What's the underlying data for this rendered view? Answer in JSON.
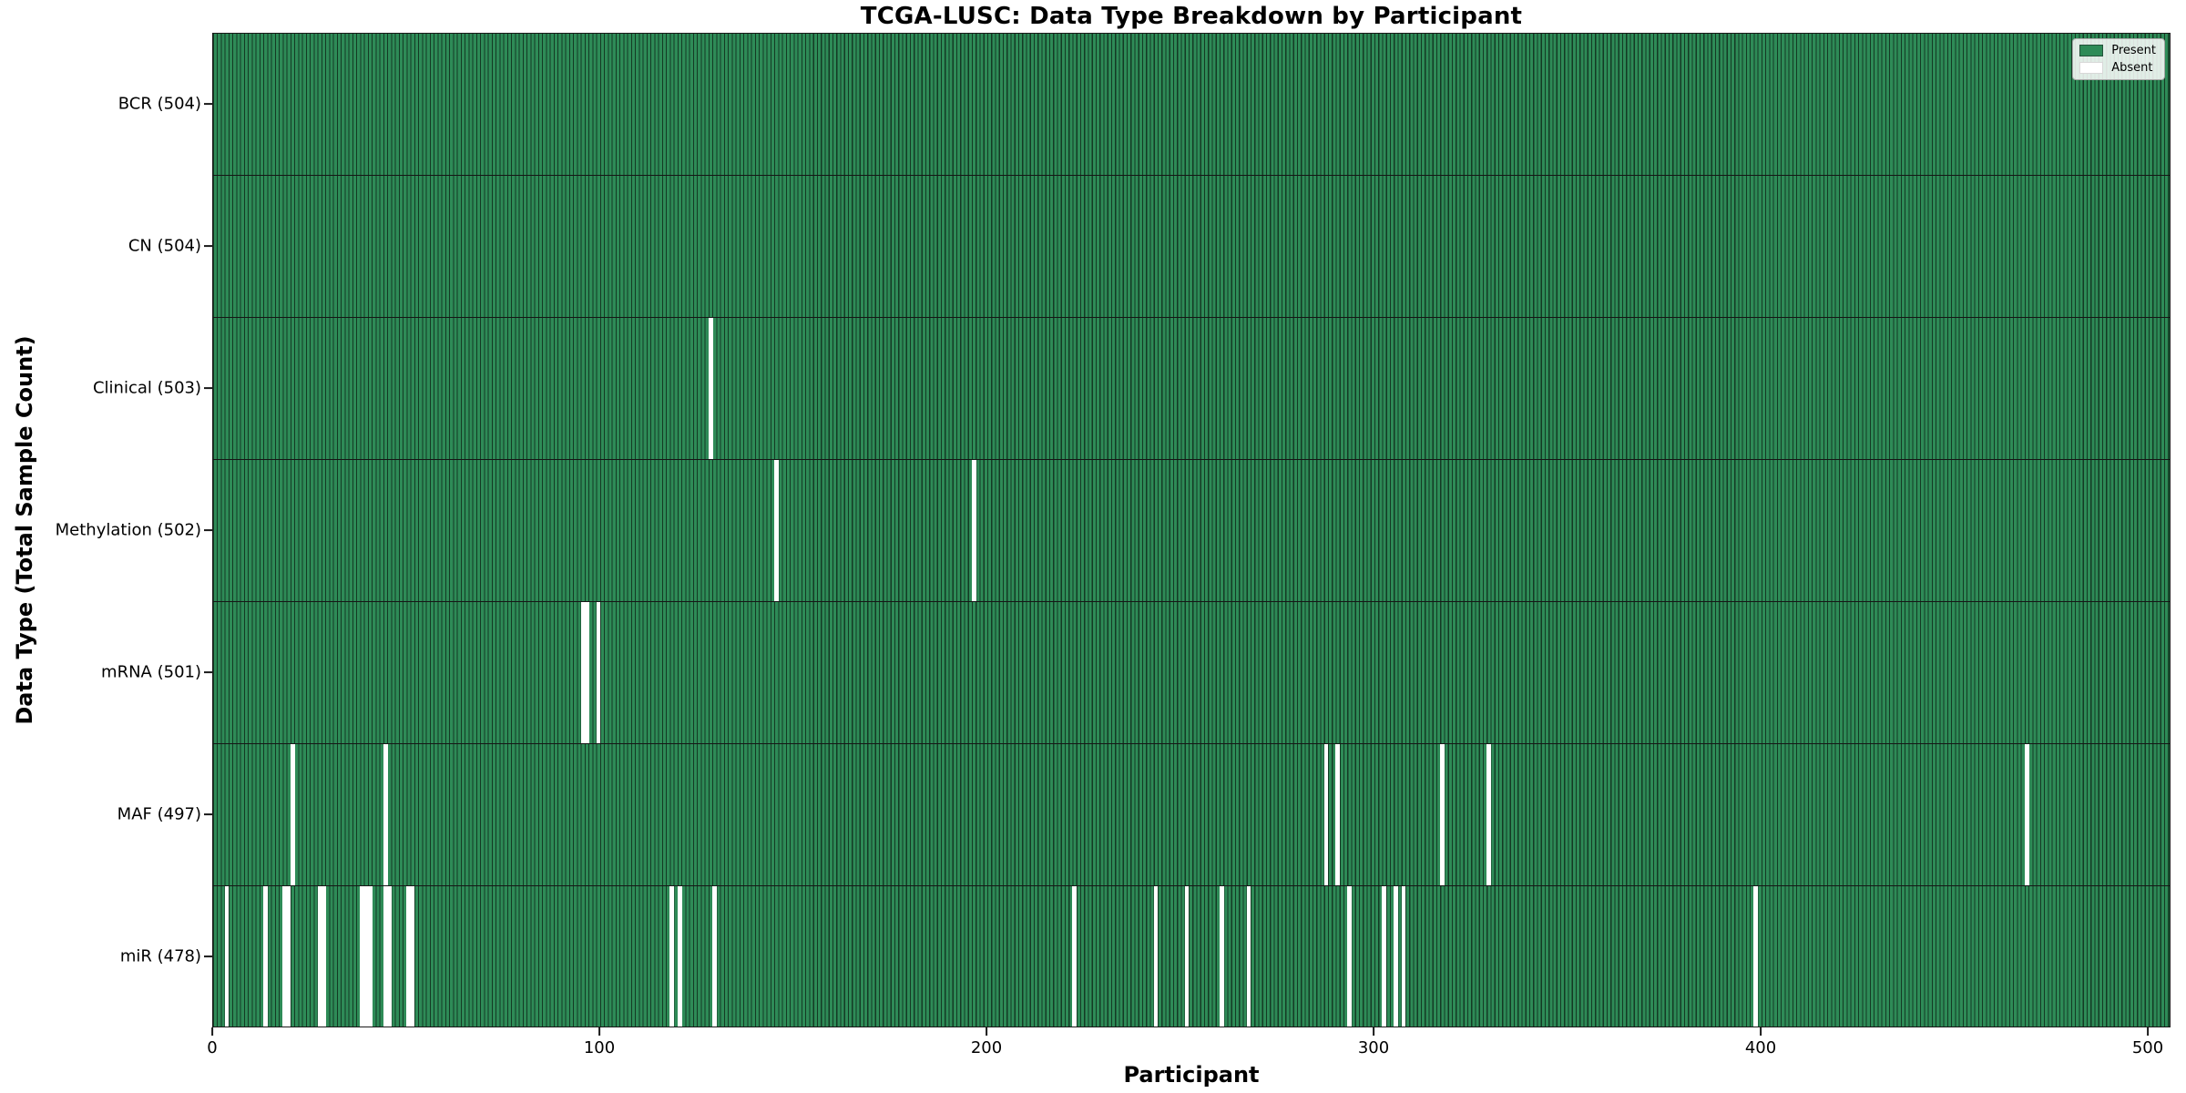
{
  "title": "TCGA-LUSC: Data Type Breakdown by Participant",
  "chart_data": {
    "type": "heatmap",
    "title": "TCGA-LUSC: Data Type Breakdown by Participant",
    "xlabel": "Participant",
    "ylabel": "Data Type (Total Sample Count)",
    "x_ticks": [
      0,
      100,
      200,
      300,
      400,
      500
    ],
    "x_range": [
      0,
      505
    ],
    "total_participants": 504,
    "grid": false,
    "legend_position": "upper right",
    "legend": [
      {
        "label": "Present",
        "color": "#2e8b57"
      },
      {
        "label": "Absent",
        "color": "#ffffff"
      }
    ],
    "colors": {
      "present": "#2e8b57",
      "bar_edge": "#143a24",
      "absent": "#ffffff",
      "spine": "#1a1a1a"
    },
    "rows": [
      {
        "label": "BCR (504)",
        "name": "BCR",
        "count": 504,
        "absent": []
      },
      {
        "label": "CN (504)",
        "name": "CN",
        "count": 504,
        "absent": []
      },
      {
        "label": "Clinical (503)",
        "name": "Clinical",
        "count": 503,
        "absent": [
          128
        ]
      },
      {
        "label": "Methylation (502)",
        "name": "Methylation",
        "count": 502,
        "absent": [
          145,
          196
        ]
      },
      {
        "label": "mRNA (501)",
        "name": "mRNA",
        "count": 501,
        "absent": [
          95,
          96,
          99
        ]
      },
      {
        "label": "MAF (497)",
        "name": "MAF",
        "count": 497,
        "absent": [
          20,
          44,
          287,
          290,
          317,
          329,
          468
        ]
      },
      {
        "label": "miR (478)",
        "name": "miR",
        "count": 478,
        "absent": [
          3,
          13,
          18,
          19,
          27,
          28,
          38,
          39,
          40,
          44,
          45,
          50,
          51,
          118,
          120,
          129,
          222,
          243,
          251,
          260,
          267,
          293,
          302,
          305,
          307,
          398
        ]
      }
    ]
  }
}
